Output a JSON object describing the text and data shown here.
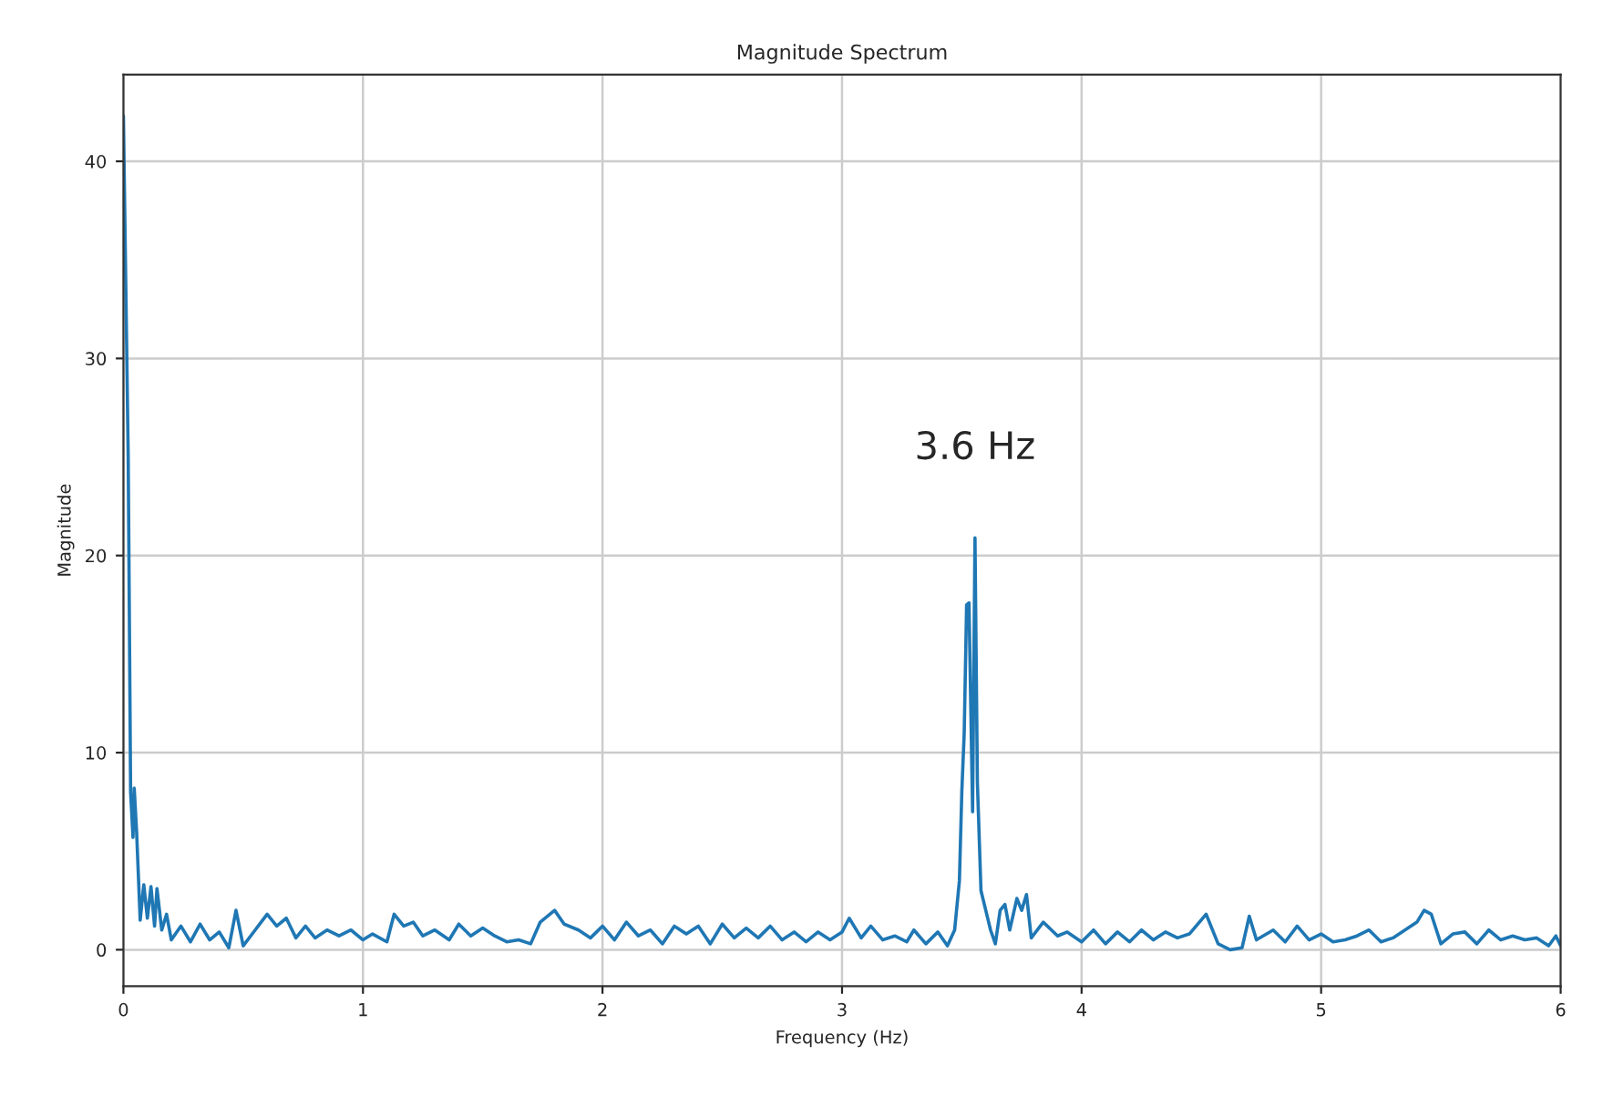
{
  "chart_data": {
    "type": "line",
    "title": "Magnitude Spectrum",
    "xlabel": "Frequency (Hz)",
    "ylabel": "Magnitude",
    "xlim": [
      0,
      6
    ],
    "ylim": [
      -1.85,
      44.4
    ],
    "xticks": [
      0,
      1,
      2,
      3,
      4,
      5,
      6
    ],
    "yticks": [
      0,
      10,
      20,
      30,
      40
    ],
    "grid": true,
    "annotations": [
      {
        "text": "3.6 Hz",
        "x": 3.555,
        "y": 20.9
      }
    ],
    "series": [
      {
        "color": "#1f77b4",
        "x": [
          0,
          0.02,
          0.03,
          0.04,
          0.045,
          0.055,
          0.07,
          0.085,
          0.1,
          0.115,
          0.13,
          0.14,
          0.16,
          0.18,
          0.2,
          0.24,
          0.28,
          0.32,
          0.36,
          0.4,
          0.44,
          0.47,
          0.5,
          0.55,
          0.6,
          0.64,
          0.68,
          0.72,
          0.76,
          0.8,
          0.85,
          0.9,
          0.95,
          1.0,
          1.04,
          1.1,
          1.13,
          1.17,
          1.21,
          1.25,
          1.3,
          1.36,
          1.4,
          1.45,
          1.5,
          1.55,
          1.6,
          1.65,
          1.7,
          1.74,
          1.8,
          1.84,
          1.9,
          1.95,
          2.0,
          2.05,
          2.1,
          2.15,
          2.2,
          2.25,
          2.3,
          2.35,
          2.4,
          2.45,
          2.5,
          2.55,
          2.6,
          2.65,
          2.7,
          2.75,
          2.8,
          2.85,
          2.9,
          2.95,
          3.0,
          3.03,
          3.08,
          3.12,
          3.17,
          3.22,
          3.27,
          3.3,
          3.35,
          3.4,
          3.44,
          3.47,
          3.49,
          3.5,
          3.51,
          3.52,
          3.53,
          3.545,
          3.555,
          3.565,
          3.58,
          3.6,
          3.62,
          3.64,
          3.66,
          3.68,
          3.7,
          3.73,
          3.75,
          3.77,
          3.79,
          3.84,
          3.9,
          3.94,
          4.0,
          4.05,
          4.1,
          4.15,
          4.2,
          4.25,
          4.3,
          4.35,
          4.4,
          4.45,
          4.52,
          4.57,
          4.62,
          4.67,
          4.7,
          4.73,
          4.8,
          4.85,
          4.9,
          4.95,
          5.0,
          5.05,
          5.1,
          5.15,
          5.2,
          5.25,
          5.3,
          5.35,
          5.4,
          5.43,
          5.46,
          5.5,
          5.55,
          5.6,
          5.65,
          5.7,
          5.75,
          5.8,
          5.85,
          5.9,
          5.95,
          5.98,
          6.0
        ],
        "values": [
          42.3,
          25,
          8,
          5.7,
          8.2,
          6,
          1.5,
          3.3,
          1.6,
          3.2,
          1.2,
          3.1,
          1,
          1.8,
          0.5,
          1.2,
          0.4,
          1.3,
          0.5,
          0.9,
          0.1,
          2.0,
          0.2,
          1.0,
          1.8,
          1.2,
          1.6,
          0.6,
          1.2,
          0.6,
          1.0,
          0.7,
          1.0,
          0.5,
          0.8,
          0.4,
          1.8,
          1.2,
          1.4,
          0.7,
          1.0,
          0.5,
          1.3,
          0.7,
          1.1,
          0.7,
          0.4,
          0.5,
          0.3,
          1.4,
          2.0,
          1.3,
          1.0,
          0.6,
          1.2,
          0.5,
          1.4,
          0.7,
          1.0,
          0.3,
          1.2,
          0.8,
          1.2,
          0.3,
          1.3,
          0.6,
          1.1,
          0.6,
          1.2,
          0.5,
          0.9,
          0.4,
          0.9,
          0.5,
          0.9,
          1.6,
          0.6,
          1.2,
          0.5,
          0.7,
          0.4,
          1.0,
          0.3,
          0.9,
          0.2,
          1.0,
          3.5,
          8,
          11,
          17.5,
          17.6,
          7,
          20.9,
          8.5,
          3,
          2,
          1,
          0.3,
          2,
          2.3,
          1.0,
          2.6,
          2.0,
          2.8,
          0.6,
          1.4,
          0.7,
          0.9,
          0.4,
          1.0,
          0.3,
          0.9,
          0.4,
          1.0,
          0.5,
          0.9,
          0.6,
          0.8,
          1.8,
          0.3,
          0,
          0.1,
          1.7,
          0.5,
          1.0,
          0.4,
          1.2,
          0.5,
          0.8,
          0.4,
          0.5,
          0.7,
          1.0,
          0.4,
          0.6,
          1.0,
          1.4,
          2.0,
          1.8,
          0.3,
          0.8,
          0.9,
          0.3,
          1.0,
          0.5,
          0.7,
          0.5,
          0.6,
          0.2,
          0.7,
          0.2
        ]
      }
    ]
  }
}
